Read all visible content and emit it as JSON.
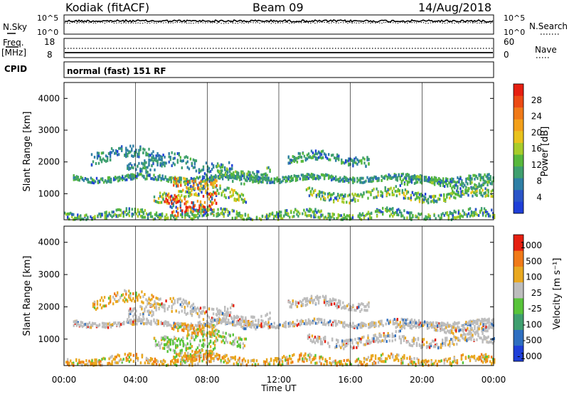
{
  "header": {
    "radar": "Kodiak (fitACF)",
    "beam": "Beam 09",
    "date": "14/Aug/2018"
  },
  "side_labels": {
    "nsky": "N.Sky",
    "nsearch": "N.Search",
    "freq": "Freq.",
    "mhz": "[MHz]",
    "nave": "Nave",
    "cpid": "CPID",
    "cpid_text": "normal (fast) 151 RF"
  },
  "noise_axis": {
    "left_top": "10^5",
    "left_bottom": "10^0",
    "right_top": "10^5",
    "right_bottom": "10^0"
  },
  "freq_axis": {
    "left_top": "18",
    "left_bottom": "8",
    "right_top": "60",
    "right_bottom": "0"
  },
  "chart_data": [
    {
      "type": "heatmap",
      "panel": "power",
      "xlabel": "",
      "ylabel": "Slant Range [km]",
      "ylim": [
        180,
        4500
      ],
      "xlim": [
        "00:00",
        "24:00"
      ],
      "yticks": [
        "1000",
        "2000",
        "3000",
        "4000"
      ],
      "colorbar": {
        "label": "Power [dB]",
        "ticks": [
          "4",
          "8",
          "12",
          "16",
          "20",
          "24",
          "28"
        ],
        "colors": [
          "#1f3fd8",
          "#2a55c8",
          "#2f7fa5",
          "#3f9f6f",
          "#58b83c",
          "#a8cc2a",
          "#e9c21c",
          "#f3a01a",
          "#f07a18",
          "#ec4a14",
          "#e61f10"
        ]
      },
      "bands": [
        {
          "start": 0.5,
          "end": 24,
          "rc": 1480,
          "hw": 80,
          "intensity": 0.35
        },
        {
          "start": 1.5,
          "end": 5.5,
          "rc": 2200,
          "hw": 180,
          "intensity": 0.3
        },
        {
          "start": 3.5,
          "end": 9.5,
          "rc": 1900,
          "hw": 220,
          "intensity": 0.3
        },
        {
          "start": 5.0,
          "end": 10.2,
          "rc": 1000,
          "hw": 170,
          "intensity": 0.55
        },
        {
          "start": 5.5,
          "end": 8.5,
          "rc": 820,
          "hw": 220,
          "intensity": 1.0
        },
        {
          "start": 6.0,
          "end": 8.3,
          "rc": 420,
          "hw": 130,
          "intensity": 0.95
        },
        {
          "start": 6.0,
          "end": 8.5,
          "rc": 1380,
          "hw": 160,
          "intensity": 0.75
        },
        {
          "start": 8.5,
          "end": 11.5,
          "rc": 1650,
          "hw": 200,
          "intensity": 0.4
        },
        {
          "start": 12.5,
          "end": 17.0,
          "rc": 2100,
          "hw": 140,
          "intensity": 0.35
        },
        {
          "start": 13.5,
          "end": 24,
          "rc": 950,
          "hw": 140,
          "intensity": 0.5
        },
        {
          "start": 18.5,
          "end": 24,
          "rc": 1350,
          "hw": 120,
          "intensity": 0.4
        },
        {
          "start": 0,
          "end": 24,
          "rc": 320,
          "hw": 130,
          "intensity": 0.45
        }
      ]
    },
    {
      "type": "heatmap",
      "panel": "velocity",
      "xlabel": "Time UT",
      "ylabel": "Slant Range [km]",
      "ylim": [
        180,
        4500
      ],
      "xlim": [
        "00:00",
        "24:00"
      ],
      "xticks": [
        "00:00",
        "04:00",
        "08:00",
        "12:00",
        "16:00",
        "20:00",
        "00:00"
      ],
      "yticks": [
        "1000",
        "2000",
        "3000",
        "4000"
      ],
      "colorbar": {
        "label": "Velocity [m s⁻¹]",
        "ticks": [
          "1000",
          "500",
          "100",
          "25",
          "-25",
          "-100",
          "-500",
          "-1000"
        ],
        "colors": [
          "#1f3fd8",
          "#2f6fc0",
          "#3f9f6f",
          "#58c43a",
          "#bdbdbd",
          "#e9a820",
          "#f07a18",
          "#e61f10"
        ]
      },
      "bands": [
        {
          "start": 0.5,
          "end": 24,
          "rc": 1480,
          "hw": 80,
          "tone": "gray"
        },
        {
          "start": 1.5,
          "end": 5.5,
          "rc": 2200,
          "hw": 180,
          "tone": "orange"
        },
        {
          "start": 3.5,
          "end": 9.5,
          "rc": 1900,
          "hw": 220,
          "tone": "gray"
        },
        {
          "start": 5.0,
          "end": 10.2,
          "rc": 1000,
          "hw": 170,
          "tone": "green"
        },
        {
          "start": 5.5,
          "end": 8.5,
          "rc": 820,
          "hw": 220,
          "tone": "green"
        },
        {
          "start": 6.0,
          "end": 8.3,
          "rc": 420,
          "hw": 130,
          "tone": "orange"
        },
        {
          "start": 6.0,
          "end": 8.5,
          "rc": 1380,
          "hw": 160,
          "tone": "orange"
        },
        {
          "start": 8.5,
          "end": 11.5,
          "rc": 1650,
          "hw": 200,
          "tone": "gray"
        },
        {
          "start": 12.5,
          "end": 17.0,
          "rc": 2100,
          "hw": 140,
          "tone": "gray"
        },
        {
          "start": 13.5,
          "end": 24,
          "rc": 950,
          "hw": 140,
          "tone": "gray"
        },
        {
          "start": 18.5,
          "end": 24,
          "rc": 1350,
          "hw": 120,
          "tone": "gray"
        },
        {
          "start": 0,
          "end": 24,
          "rc": 320,
          "hw": 130,
          "tone": "orange"
        }
      ]
    }
  ]
}
